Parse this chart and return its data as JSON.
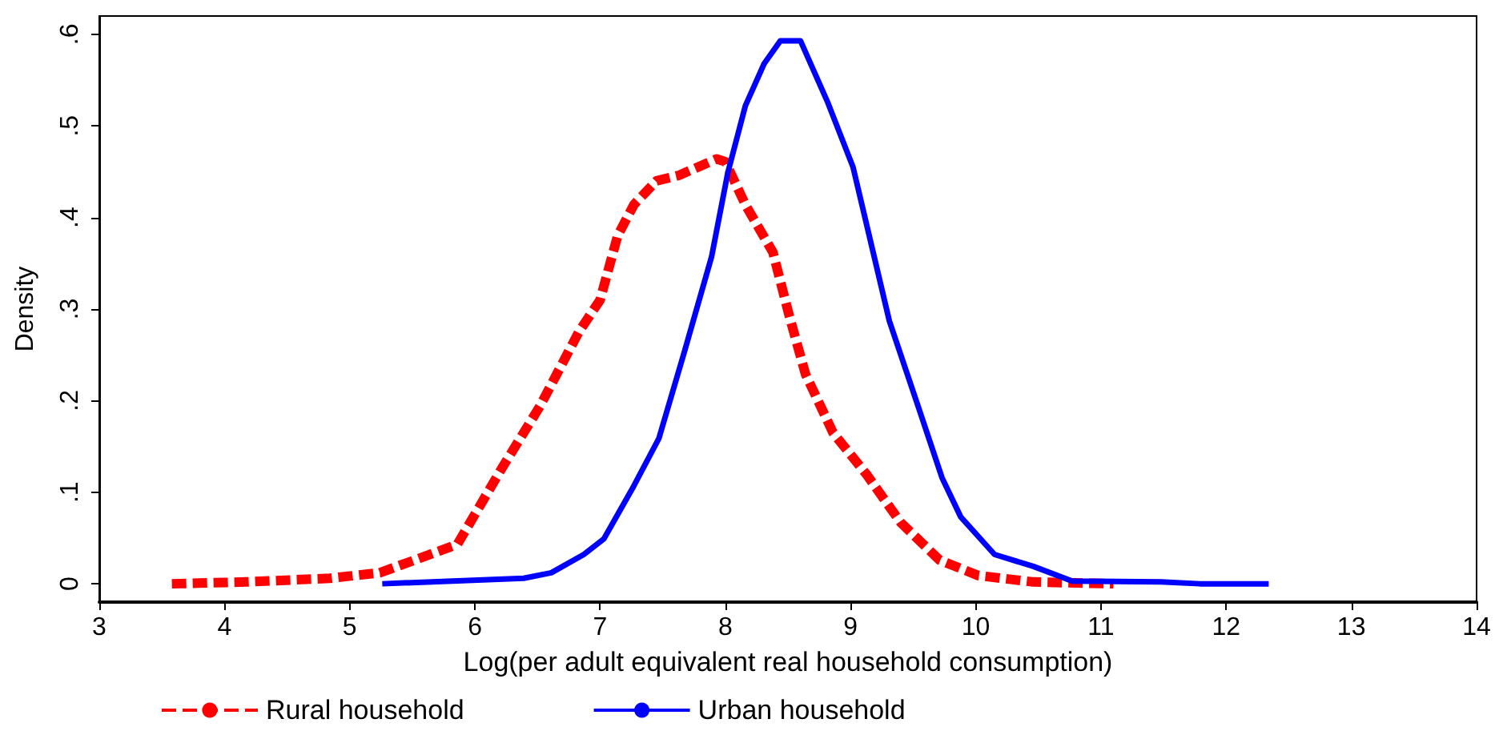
{
  "chart_data": {
    "type": "line",
    "xlabel": "Log(per adult equivalent real household consumption)",
    "ylabel": "Density",
    "xlim": [
      3,
      14
    ],
    "xticks": [
      3,
      4,
      5,
      6,
      7,
      8,
      9,
      10,
      11,
      12,
      13,
      14
    ],
    "ylim": [
      -0.02,
      0.62
    ],
    "yticks": [
      {
        "value": 0,
        "label": "0"
      },
      {
        "value": 0.1,
        "label": ".1"
      },
      {
        "value": 0.2,
        "label": ".2"
      },
      {
        "value": 0.3,
        "label": ".3"
      },
      {
        "value": 0.4,
        "label": ".4"
      },
      {
        "value": 0.5,
        "label": ".5"
      },
      {
        "value": 0.6,
        "label": ".6"
      }
    ],
    "grid": false,
    "legend": "bottom left",
    "marker": "none",
    "series": [
      {
        "name": "Rural household",
        "color": "#ff0000",
        "line_style": "dashed",
        "x": [
          3.58,
          4.17,
          4.84,
          5.24,
          5.86,
          6.21,
          6.52,
          6.83,
          7.0,
          7.14,
          7.27,
          7.45,
          7.63,
          7.93,
          8.0,
          8.16,
          8.38,
          8.51,
          8.64,
          8.86,
          9.13,
          9.4,
          9.71,
          10.02,
          10.46,
          11.1
        ],
        "values": [
          0,
          0.002,
          0.006,
          0.012,
          0.043,
          0.125,
          0.194,
          0.275,
          0.31,
          0.38,
          0.414,
          0.44,
          0.446,
          0.464,
          0.461,
          0.414,
          0.362,
          0.293,
          0.229,
          0.165,
          0.119,
          0.067,
          0.026,
          0.009,
          0.002,
          0
        ]
      },
      {
        "name": "Urban household",
        "color": "#0000ff",
        "line_style": "solid",
        "x": [
          5.26,
          6.39,
          6.61,
          6.87,
          7.03,
          7.27,
          7.47,
          7.67,
          7.89,
          8.02,
          8.16,
          8.31,
          8.44,
          8.6,
          8.82,
          9.02,
          9.31,
          9.51,
          9.73,
          9.88,
          10.15,
          10.46,
          10.77,
          11.48,
          11.79,
          12.34
        ],
        "values": [
          0,
          0.006,
          0.012,
          0.032,
          0.049,
          0.107,
          0.159,
          0.252,
          0.357,
          0.449,
          0.522,
          0.568,
          0.593,
          0.593,
          0.525,
          0.455,
          0.287,
          0.206,
          0.116,
          0.073,
          0.032,
          0.019,
          0.003,
          0.002,
          0,
          0
        ]
      }
    ]
  }
}
